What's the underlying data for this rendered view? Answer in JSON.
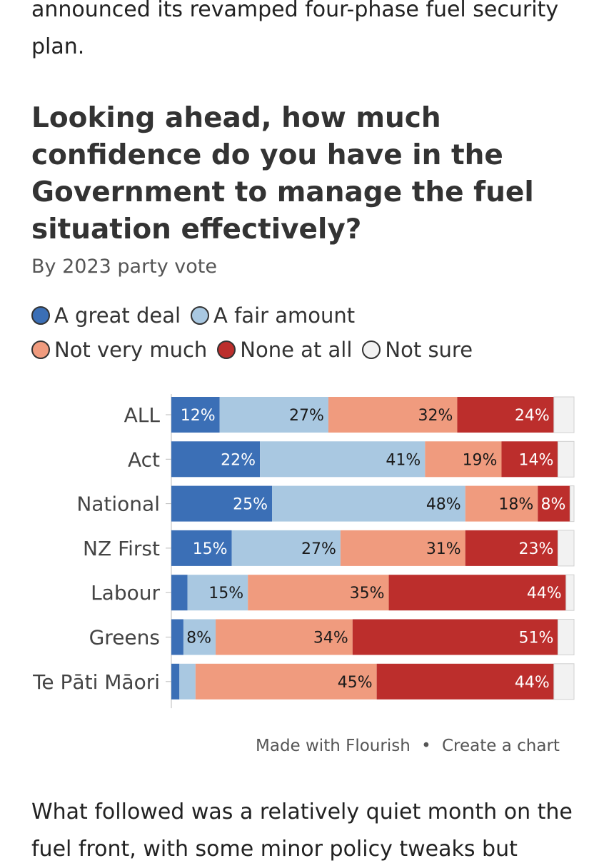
{
  "article": {
    "intro": "announced its revamped four-phase fuel security plan.",
    "outro": "What followed was a relatively quiet month on the fuel front, with some minor policy tweaks but"
  },
  "legend": {
    "items": [
      {
        "label": "A great deal",
        "color": "#3b6fb6"
      },
      {
        "label": "A fair amount",
        "color": "#a9c8e1"
      },
      {
        "label": "Not very much",
        "color": "#f09b7e"
      },
      {
        "label": "None at all",
        "color": "#bc2e2c"
      },
      {
        "label": "Not sure",
        "color": "#f2f2f2"
      }
    ]
  },
  "footer": {
    "made_with": "Made with Flourish",
    "separator": "•",
    "create": "Create a chart"
  },
  "chart_data": {
    "type": "bar",
    "orientation": "horizontal",
    "stacked": true,
    "title": "Looking ahead, how much confidence do you have in the Government to manage the fuel situation effectively?",
    "subtitle": "By 2023 party vote",
    "categories": [
      "ALL",
      "Act",
      "National",
      "NZ First",
      "Labour",
      "Greens",
      "Te Pāti Māori"
    ],
    "xlim": [
      0,
      100
    ],
    "legend_position": "top",
    "series": [
      {
        "name": "A great deal",
        "color": "#3b6fb6",
        "values": [
          12,
          22,
          25,
          15,
          4,
          3,
          2
        ]
      },
      {
        "name": "A fair amount",
        "color": "#a9c8e1",
        "values": [
          27,
          41,
          48,
          27,
          15,
          8,
          4
        ]
      },
      {
        "name": "Not very much",
        "color": "#f09b7e",
        "values": [
          32,
          19,
          18,
          31,
          35,
          34,
          45
        ]
      },
      {
        "name": "None at all",
        "color": "#bc2e2c",
        "values": [
          24,
          14,
          8,
          23,
          44,
          51,
          44
        ]
      },
      {
        "name": "Not sure",
        "color": "#f2f2f2",
        "values": [
          5,
          4,
          1,
          4,
          2,
          4,
          5
        ]
      }
    ],
    "data_labels": [
      [
        "12%",
        "27%",
        "32%",
        "24%",
        ""
      ],
      [
        "22%",
        "41%",
        "19%",
        "14%",
        ""
      ],
      [
        "25%",
        "48%",
        "18%",
        "8%",
        ""
      ],
      [
        "15%",
        "27%",
        "31%",
        "23%",
        ""
      ],
      [
        "",
        "15%",
        "35%",
        "44%",
        ""
      ],
      [
        "",
        "8%",
        "34%",
        "51%",
        ""
      ],
      [
        "",
        "",
        "45%",
        "44%",
        ""
      ]
    ]
  }
}
